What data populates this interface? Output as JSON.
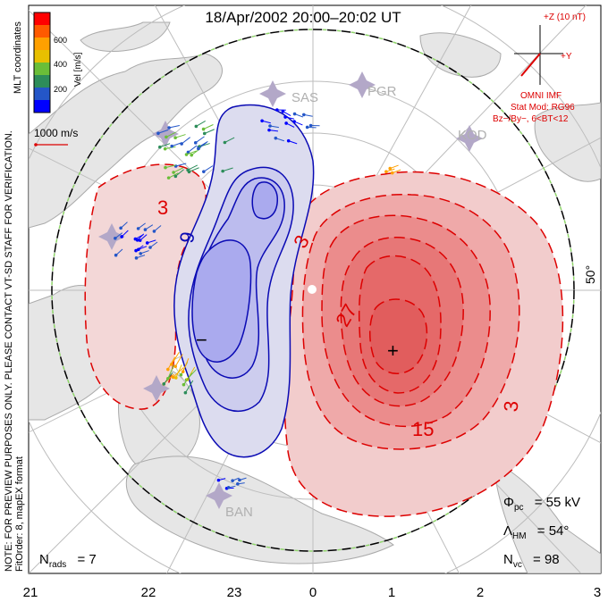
{
  "title": "18/Apr/2002 20:00–20:02 UT",
  "vertical_note": "NOTE: FOR PREVIEW PURPOSES ONLY. PLEASE CONTACT VT-SD STAFF FOR VERIFICATION.",
  "coordinates_label": "MLT coordinates",
  "fit_label": "FitOrder: 8, mapEX format",
  "colorbar": {
    "label": "Vel [m/s]",
    "ticks": [
      "600",
      "400",
      "200"
    ],
    "colors": [
      "#ff0000",
      "#ff5a00",
      "#ffa000",
      "#e8c000",
      "#6abe38",
      "#2d8d5a",
      "#2456c8",
      "#0000ff"
    ]
  },
  "scale": {
    "label": "1000 m/s"
  },
  "imf": {
    "z_label": "+Z (10 nT)",
    "y_label": "+Y",
    "source": "OMNI IMF",
    "model": "Stat Mod: RG96",
    "condition": "Bz−/By−, 6<BT<12"
  },
  "stations": [
    "SAS",
    "PGR",
    "KOD",
    "BAN"
  ],
  "latitude_label": "50°",
  "contour_labels": [
    "3",
    "9",
    "3",
    "27",
    "15",
    "3"
  ],
  "extrema": {
    "min": "−",
    "max": "+"
  },
  "stats": {
    "phi_symbol": "Φ",
    "phi_sub": "pc",
    "phi_value": "= 55 kV",
    "lambda_symbol": "Λ",
    "lambda_sub": "HM",
    "lambda_value": "= 54°",
    "nvc_symbol": "N",
    "nvc_sub": "vc",
    "nvc_value": "= 98",
    "nrads_symbol": "N",
    "nrads_sub": "rads",
    "nrads_value": "= 7"
  },
  "mlt_ticks": [
    "21",
    "22",
    "23",
    "0",
    "1",
    "2",
    "3"
  ]
}
